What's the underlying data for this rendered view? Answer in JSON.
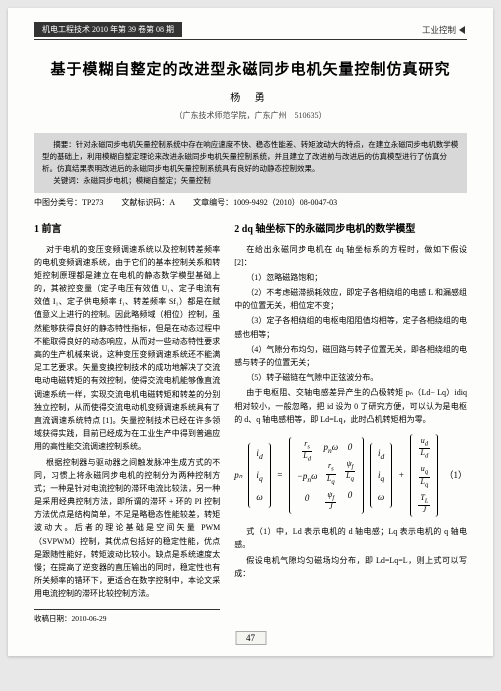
{
  "header": {
    "journal_issue": "机电工程技术 2010 年第 39 卷第 08 期",
    "category": "工业控制"
  },
  "title": "基于模糊自整定的改进型永磁同步电机矢量控制仿真研究",
  "author": "杨 勇",
  "affiliation": "（广东技术师范学院，广东广州　510635）",
  "abstract": {
    "label": "摘要",
    "text": "摘要：针对永磁同步电机矢量控制系统中存在响应速度不快、稳态性能差、转矩波动大的特点，在建立永磁同步电机数学模型的基础上，利用模糊自整定理论来改进永磁同步电机矢量控制系统，并且建立了改进前与改进后的仿真模型进行了仿真分析。仿真结果表明改进后的永磁同步电机矢量控制系统具有良好的动静态控制效果。",
    "keywords": "关键词：永磁同步电机；模糊自整定；矢量控制"
  },
  "meta": {
    "clc": "中图分类号：TP273",
    "doc_code": "文献标识码：A",
    "article_id": "文章编号：1009-9492（2010）08-0047-03"
  },
  "left": {
    "h1": "1 前言",
    "p1": "对于电机的变压变频调速系统以及控制转差频率的电机变频调速系统，由于它们的基本控制关系和转矩控制原理都是建立在电机的静态数学模型基础上的，其被控变量（定子电压有效值 U₁、定子电流有效值 I₁、定子供电频率 f₁、转差频率 Sf₁）都是在赋值意义上进行的控制。因此略频域（相位）控制，虽然能够获得良好的静态特性指标，但是在动态过程中不能取得良好的动态响应，从而对一些动态特性要求高的生产机械来说，这种变压变频调速系统还不能满足工艺要求。矢量变换控制技术的成功地解决了交流电动电磁转矩的有效控制，使得交流电机能够像直流调速系统一样，实现交流电机电磁转矩和转差的分别独立控制，从而使得交流电动机变频调速系统具有了直流调速系统特点 [1]。矢量控制技术已经在许多领域获得实践，目前已经成为在工业生产中得到普遍应用的高性能交流调速控制系统。",
    "p2": "根据控制器与驱动器之间触发脉冲生成方式的不同，习惯上将永磁同步电机的控制分为两种控制方式；一种是针对电流控制的滞环电流比较法，另一种是采用经典控制方法，即所谓的滞环 + 环的 PI 控制方法优点是结构简单，不足是略稳态性能较差，转矩波动大。后者的理论基础是空间矢量 PWM（SVPWM）控制，其优点包括好的稳定性能，优点是跟随性能好，转矩波动比较小。缺点是系统速度太慢；在提高了逆变器的直压输出的同时，稳定性也有所关频率的错环下，更适合在数字控制中，本论文采用电流控制的滞环比较控制方法。"
  },
  "right": {
    "h1": "2  dq 轴坐标下的永磁同步电机的数学模型",
    "p0": "在给出永磁同步电机在 dq 轴坐标系的方程时，做如下假设 [2]：",
    "p1": "（1）忽略磁路饱和；",
    "p2": "（2）不考虑磁滞损耗效应，即定子各相绕组的电感 L 和漏感组中的位置无关，相位定不变；",
    "p3": "（3）定子各相绕组的电枢电阻阻值均相等，定子各相绕组的电感也相等；",
    "p4": "（4）气隙分布均匀，磁回路与转子位置无关，即各相绕组的电感与转子的位置无关；",
    "p5": "（5）转子磁链在气隙中正弦波分布。",
    "p6": "由于电枢阻、交轴电感差异产生的凸极转矩 pₙ（Ld− Lq）idiq 相对较小，一般忽略，把 id 设为 0 了研究方便，可以认为是电枢的 d、q 轴电感相等，即 Ld=Lq，此时凸机转矩相为零。",
    "eq_lhs": "pₙ",
    "eq_num": "（1）",
    "p7": "式（1）中，Ld 表示电机的 d 轴电感；Lq 表示电机的 q 轴电感。",
    "p8": "假设电机气隙均匀磁场均分布，即 Ld=Lq=L，则上式可以写成："
  },
  "footer": {
    "received": "收稿日期：2010-06-29",
    "page": "47"
  }
}
